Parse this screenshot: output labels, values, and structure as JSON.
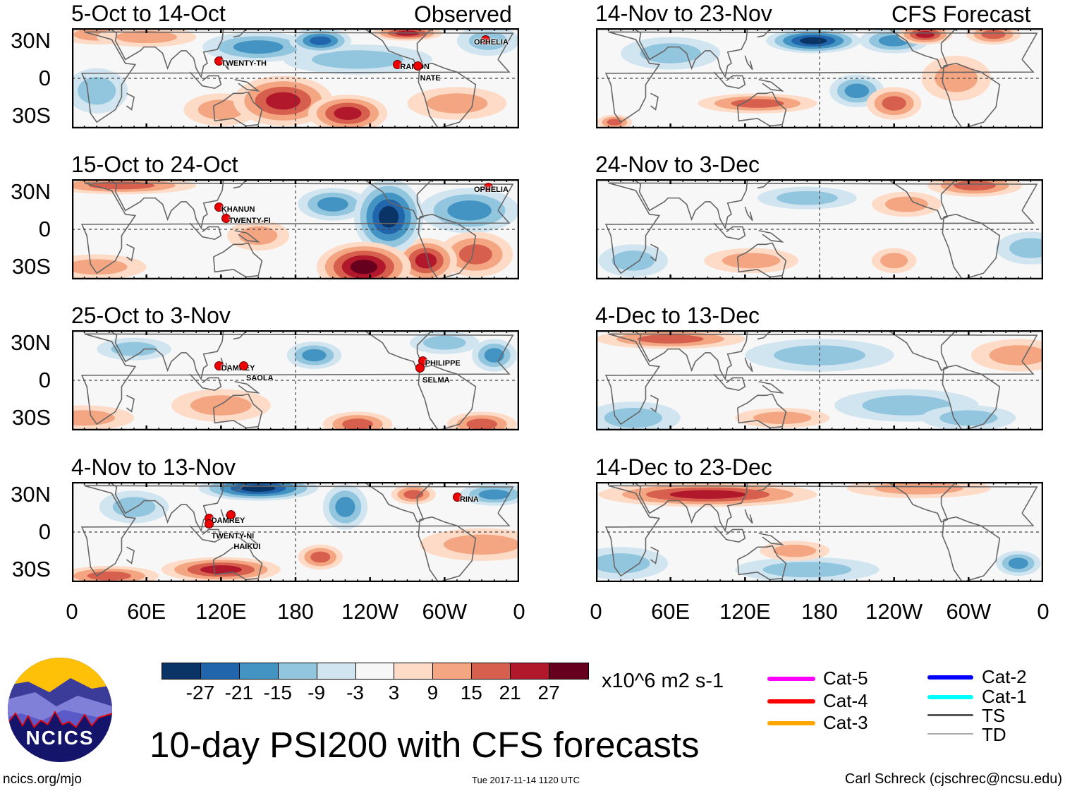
{
  "title": "10-day PSI200 with CFS forecasts",
  "website": "ncics.org/mjo",
  "timestamp": "Tue 2017-11-14 1120 UTC",
  "author": "Carl Schreck (cjschrec@ncsu.edu)",
  "logo_text": "NCICS",
  "labels": {
    "observed": "Observed",
    "forecast": "CFS Forecast"
  },
  "units": "x10^6 m2 s-1",
  "colorbar": {
    "colors": [
      "#0b3466",
      "#2166ac",
      "#4393c3",
      "#92c5de",
      "#d1e5f0",
      "#f7f7f7",
      "#fddbc7",
      "#f4a582",
      "#d6604d",
      "#b2182b",
      "#67001f"
    ],
    "ticks": [
      "-27",
      "-21",
      "-15",
      "-9",
      "-3",
      "3",
      "9",
      "15",
      "21",
      "27"
    ]
  },
  "legend": [
    {
      "label": "Cat-5",
      "color": "#ff00ff"
    },
    {
      "label": "Cat-4",
      "color": "#ff0000"
    },
    {
      "label": "Cat-3",
      "color": "#ffa500"
    },
    {
      "label": "Cat-2",
      "color": "#0000ff"
    },
    {
      "label": "Cat-1",
      "color": "#00ffff"
    },
    {
      "label": "TS",
      "color": "#555555"
    },
    {
      "label": "TD",
      "color": "#aaaaaa"
    }
  ],
  "axes": {
    "lat_ticks": [
      "30N",
      "0",
      "30S"
    ],
    "lon_ticks": [
      "0",
      "60E",
      "120E",
      "180",
      "120W",
      "60W",
      "0"
    ]
  },
  "chart_data": {
    "type": "heatmap",
    "variable": "PSI200 anomaly",
    "lon_range": [
      0,
      360
    ],
    "lat_range": [
      -40,
      40
    ],
    "anomaly_format": "[lon, lat, value, lon_halfwidth_deg, lat_halfheight_deg]",
    "panels": [
      {
        "title": "5-Oct to 14-Oct",
        "anomalies": [
          [
            20,
            35,
            9,
            30,
            8
          ],
          [
            60,
            33,
            9,
            40,
            8
          ],
          [
            150,
            25,
            -15,
            45,
            12
          ],
          [
            200,
            30,
            -21,
            25,
            10
          ],
          [
            230,
            15,
            -9,
            60,
            12
          ],
          [
            270,
            36,
            21,
            28,
            6
          ],
          [
            335,
            30,
            -9,
            25,
            12
          ],
          [
            20,
            -10,
            -9,
            25,
            18
          ],
          [
            120,
            -25,
            9,
            30,
            13
          ],
          [
            170,
            -18,
            21,
            40,
            20
          ],
          [
            222,
            -28,
            21,
            32,
            15
          ],
          [
            310,
            -20,
            9,
            40,
            13
          ]
        ],
        "storms": [
          {
            "name": "TWENTY-TH",
            "lon": 118,
            "lat": 14
          },
          {
            "name": "RAMON",
            "lon": 262,
            "lat": 11
          },
          {
            "name": "NATE",
            "lon": 278,
            "lat": 10
          },
          {
            "name": "OPHELIA",
            "lon": 333,
            "lat": 31
          }
        ]
      },
      {
        "title": "15-Oct to 24-Oct",
        "anomalies": [
          [
            40,
            35,
            15,
            60,
            7
          ],
          [
            20,
            -30,
            9,
            40,
            10
          ],
          [
            210,
            20,
            -15,
            28,
            13
          ],
          [
            255,
            10,
            -27,
            28,
            30
          ],
          [
            320,
            15,
            -15,
            40,
            18
          ],
          [
            235,
            -30,
            27,
            38,
            20
          ],
          [
            285,
            -25,
            21,
            25,
            18
          ],
          [
            325,
            -20,
            15,
            30,
            18
          ],
          [
            150,
            -5,
            9,
            25,
            12
          ]
        ],
        "storms": [
          {
            "name": "KHANUN",
            "lon": 118,
            "lat": 18
          },
          {
            "name": "TWENTY-FI",
            "lon": 124,
            "lat": 9
          },
          {
            "name": "OPHELIA",
            "lon": 335,
            "lat": 34
          }
        ]
      },
      {
        "title": "25-Oct to 3-Nov",
        "anomalies": [
          [
            50,
            25,
            -9,
            30,
            9
          ],
          [
            195,
            20,
            -15,
            22,
            11
          ],
          [
            300,
            30,
            -9,
            28,
            9
          ],
          [
            340,
            20,
            -15,
            18,
            13
          ],
          [
            10,
            -30,
            9,
            40,
            10
          ],
          [
            120,
            -20,
            9,
            40,
            13
          ],
          [
            230,
            -35,
            15,
            28,
            10
          ],
          [
            330,
            -35,
            15,
            28,
            10
          ]
        ],
        "storms": [
          {
            "name": "DAMREY",
            "lon": 118,
            "lat": 12
          },
          {
            "name": "SAOLA",
            "lon": 138,
            "lat": 12
          },
          {
            "name": "PHILIPPE",
            "lon": 282,
            "lat": 16
          },
          {
            "name": "SELMA",
            "lon": 280,
            "lat": 10
          }
        ]
      },
      {
        "title": "4-Nov to 13-Nov",
        "anomalies": [
          [
            150,
            35,
            -27,
            48,
            10
          ],
          [
            220,
            20,
            -15,
            18,
            18
          ],
          [
            275,
            30,
            15,
            18,
            8
          ],
          [
            340,
            30,
            -15,
            28,
            9
          ],
          [
            50,
            20,
            -9,
            28,
            13
          ],
          [
            30,
            -35,
            15,
            40,
            8
          ],
          [
            120,
            -30,
            21,
            48,
            10
          ],
          [
            200,
            -20,
            15,
            18,
            10
          ],
          [
            330,
            -10,
            9,
            50,
            13
          ]
        ],
        "storms": [
          {
            "name": "DAMREY",
            "lon": 110,
            "lat": 11
          },
          {
            "name": "TWENTY-NI",
            "lon": 110,
            "lat": 7
          },
          {
            "name": "HAIKUI",
            "lon": 128,
            "lat": 14
          },
          {
            "name": "RINA",
            "lon": 310,
            "lat": 28
          }
        ]
      },
      {
        "title": "14-Nov to 23-Nov",
        "anomalies": [
          [
            60,
            20,
            -9,
            40,
            13
          ],
          [
            175,
            30,
            -27,
            38,
            10
          ],
          [
            240,
            30,
            -15,
            28,
            10
          ],
          [
            265,
            35,
            21,
            22,
            8
          ],
          [
            320,
            35,
            15,
            22,
            8
          ],
          [
            210,
            -10,
            -15,
            22,
            13
          ],
          [
            130,
            -20,
            15,
            48,
            8
          ],
          [
            240,
            -20,
            15,
            22,
            13
          ],
          [
            15,
            -35,
            15,
            14,
            6
          ],
          [
            290,
            0,
            9,
            28,
            18
          ]
        ]
      },
      {
        "title": "24-Nov to 3-Dec",
        "anomalies": [
          [
            170,
            25,
            -9,
            40,
            9
          ],
          [
            250,
            20,
            9,
            28,
            10
          ],
          [
            305,
            35,
            15,
            38,
            9
          ],
          [
            125,
            -25,
            9,
            38,
            10
          ],
          [
            240,
            -25,
            9,
            18,
            10
          ],
          [
            30,
            -25,
            -9,
            28,
            13
          ],
          [
            350,
            -15,
            -9,
            28,
            13
          ]
        ]
      },
      {
        "title": "4-Dec to 13-Dec",
        "anomalies": [
          [
            60,
            33,
            15,
            60,
            8
          ],
          [
            180,
            20,
            -9,
            60,
            13
          ],
          [
            340,
            20,
            9,
            38,
            13
          ],
          [
            30,
            -30,
            -9,
            38,
            13
          ],
          [
            150,
            -30,
            9,
            38,
            8
          ],
          [
            250,
            -20,
            -9,
            58,
            13
          ],
          [
            300,
            -30,
            -9,
            38,
            10
          ]
        ]
      },
      {
        "title": "14-Dec to 23-Dec",
        "anomalies": [
          [
            90,
            30,
            21,
            88,
            10
          ],
          [
            260,
            35,
            9,
            58,
            8
          ],
          [
            20,
            -25,
            -9,
            38,
            13
          ],
          [
            170,
            -30,
            -9,
            58,
            10
          ],
          [
            160,
            -15,
            9,
            28,
            8
          ],
          [
            340,
            -25,
            -15,
            18,
            10
          ]
        ]
      }
    ]
  }
}
